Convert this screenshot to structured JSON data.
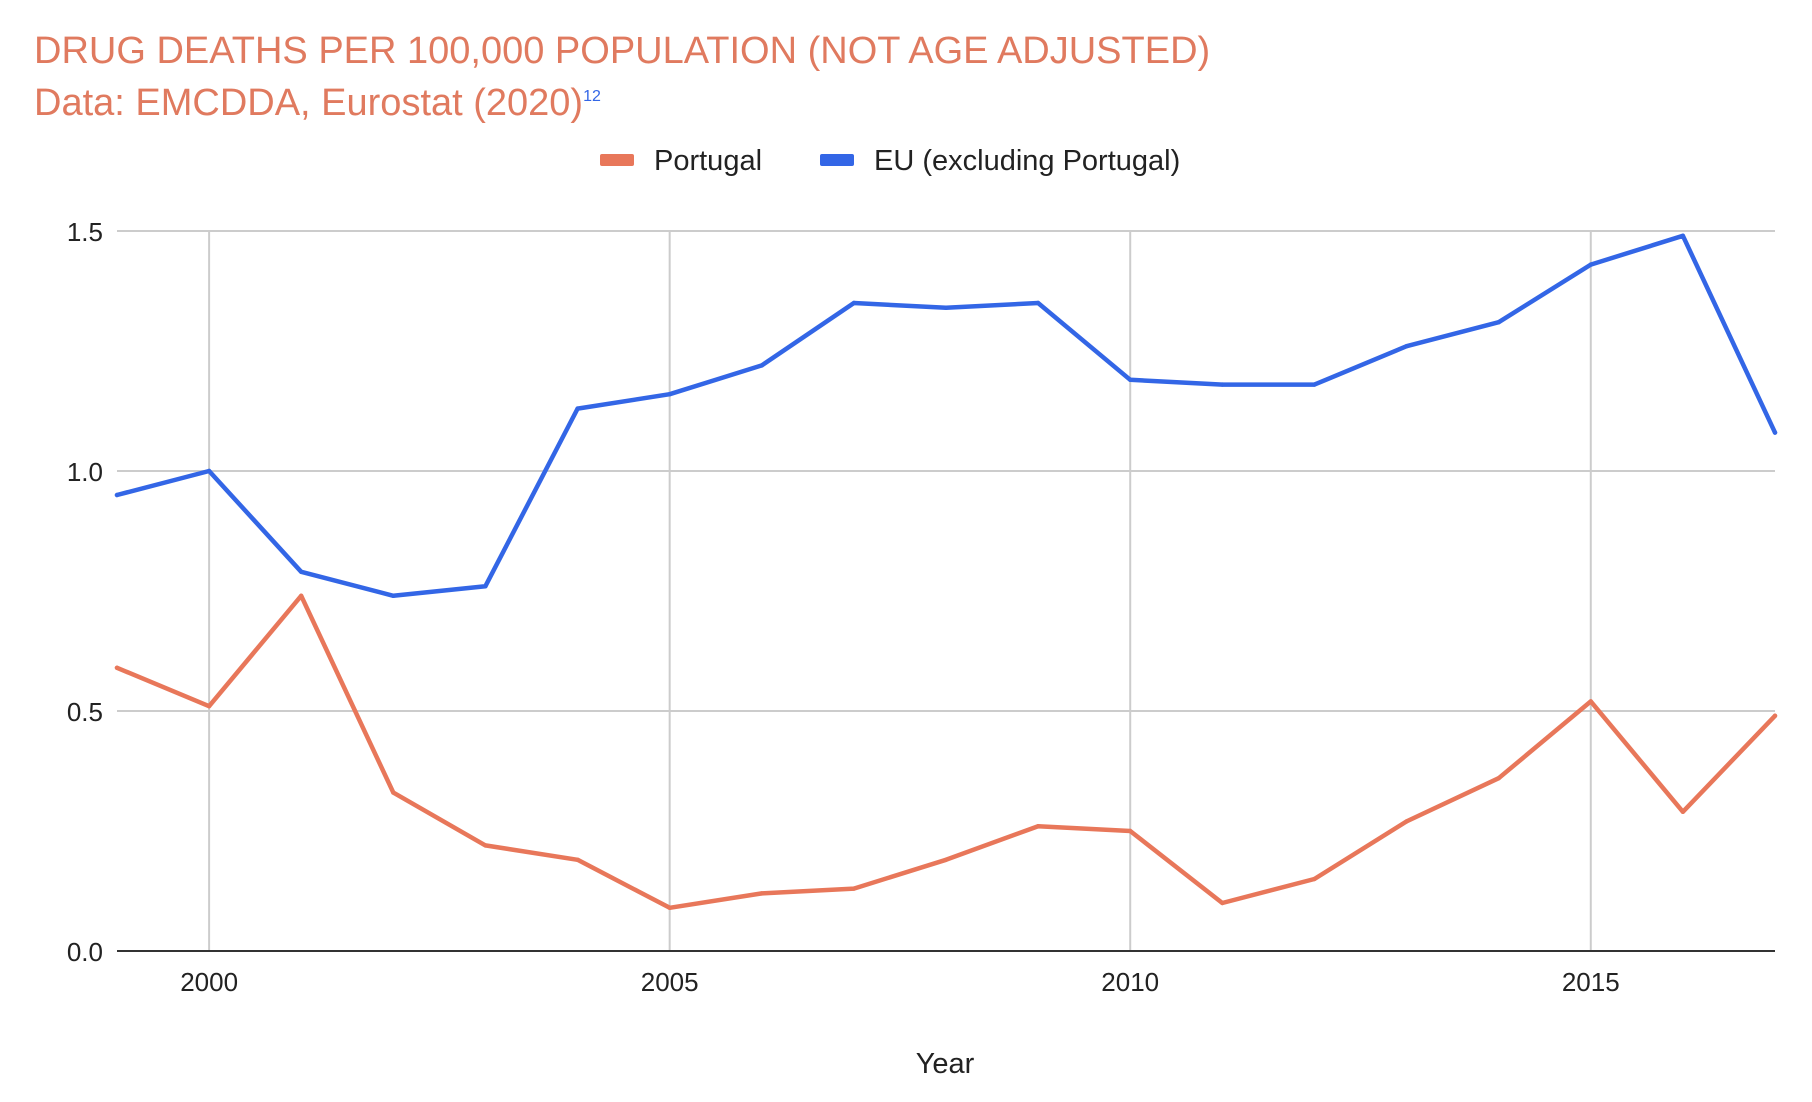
{
  "chart_data": {
    "type": "line",
    "title": "DRUG DEATHS PER 100,000 POPULATION (NOT AGE ADJUSTED)",
    "subtitle": "Data: EMCDDA, Eurostat (2020)",
    "subtitle_superscript": "12",
    "xlabel": "Year",
    "ylabel": "",
    "x": [
      1999,
      2000,
      2001,
      2002,
      2003,
      2004,
      2005,
      2006,
      2007,
      2008,
      2009,
      2010,
      2011,
      2012,
      2013,
      2014,
      2015,
      2016,
      2017
    ],
    "xlim": [
      1999,
      2017
    ],
    "ylim": [
      0,
      1.5
    ],
    "x_ticks": [
      2000,
      2005,
      2010,
      2015
    ],
    "x_tick_labels": [
      "2000",
      "2005",
      "2010",
      "2015"
    ],
    "y_ticks": [
      0,
      0.5,
      1.0,
      1.5
    ],
    "y_tick_labels": [
      "0.0",
      "0.5",
      "1.0",
      "1.5"
    ],
    "grid": true,
    "legend_position": "top-center",
    "series": [
      {
        "name": "Portugal",
        "color": "#E8775A",
        "values": [
          0.59,
          0.51,
          0.74,
          0.33,
          0.22,
          0.19,
          0.09,
          0.12,
          0.13,
          0.19,
          0.26,
          0.25,
          0.1,
          0.15,
          0.27,
          0.36,
          0.52,
          0.29,
          0.49
        ]
      },
      {
        "name": "EU (excluding Portugal)",
        "color": "#3366E6",
        "values": [
          0.95,
          1.0,
          0.79,
          0.74,
          0.76,
          1.13,
          1.16,
          1.22,
          1.35,
          1.34,
          1.35,
          1.19,
          1.18,
          1.18,
          1.26,
          1.31,
          1.43,
          1.49,
          1.08
        ]
      }
    ],
    "colors": {
      "title": "#E07A5F",
      "superscript": "#3366E6",
      "grid": "#CCCCCC",
      "axis": "#333333",
      "text": "#222222"
    }
  }
}
